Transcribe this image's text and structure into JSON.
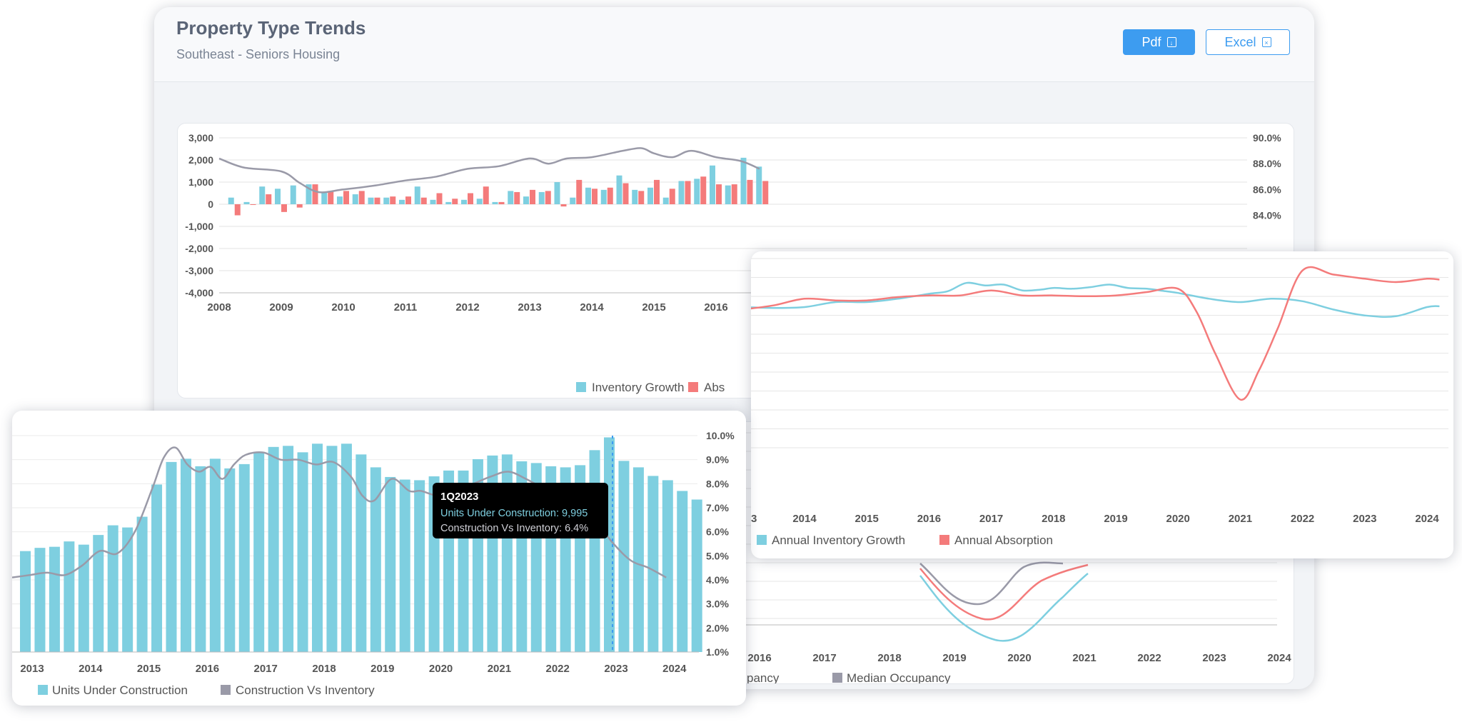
{
  "header": {
    "title": "Property Type Trends",
    "subtitle": "Southeast - Seniors Housing",
    "pdf_label": "Pdf",
    "excel_label": "Excel"
  },
  "colors": {
    "cyan": "#7ecfe0",
    "red": "#f47b7b",
    "gray": "#9a9aa8",
    "accent": "#3d9cf0"
  },
  "chart_data": [
    {
      "type": "bar",
      "y_left_ticks": [
        "3,000",
        "2,000",
        "1,000",
        "0",
        "-1,000",
        "-2,000",
        "-3,000",
        "-4,000"
      ],
      "ylim": [
        -4000,
        3000
      ],
      "y_right_ticks": [
        "90.0%",
        "88.0%",
        "86.0%",
        "84.0%"
      ],
      "y2lim": [
        78,
        90
      ],
      "x_ticks": [
        "2008",
        "2009",
        "2010",
        "2011",
        "2012",
        "2013",
        "2014",
        "2015",
        "2016"
      ],
      "legend": [
        "Inventory Growth",
        "Abs"
      ],
      "series": [
        {
          "name": "Inventory Growth",
          "quarters": [
            "2008Q2",
            "2008Q3",
            "2008Q4",
            "2009Q1",
            "2009Q2",
            "2009Q3",
            "2009Q4",
            "2010Q1",
            "2010Q2",
            "2010Q3",
            "2010Q4",
            "2011Q1",
            "2011Q2",
            "2011Q3",
            "2011Q4",
            "2012Q1",
            "2012Q2",
            "2012Q3",
            "2012Q4",
            "2013Q1",
            "2013Q2",
            "2013Q3",
            "2013Q4",
            "2014Q1",
            "2014Q2",
            "2014Q3",
            "2014Q4",
            "2015Q1",
            "2015Q2",
            "2015Q3",
            "2015Q4",
            "2016Q1",
            "2016Q2",
            "2016Q3",
            "2016Q4"
          ],
          "values": [
            300,
            100,
            800,
            700,
            850,
            900,
            550,
            350,
            450,
            300,
            300,
            200,
            800,
            200,
            100,
            200,
            250,
            100,
            600,
            350,
            550,
            1000,
            300,
            750,
            650,
            1300,
            650,
            750,
            300,
            1050,
            1150,
            1750,
            850,
            2100,
            1700
          ]
        },
        {
          "name": "Abs",
          "quarters": [
            "2008Q2",
            "2008Q3",
            "2008Q4",
            "2009Q1",
            "2009Q2",
            "2009Q3",
            "2009Q4",
            "2010Q1",
            "2010Q2",
            "2010Q3",
            "2010Q4",
            "2011Q1",
            "2011Q2",
            "2011Q3",
            "2011Q4",
            "2012Q1",
            "2012Q2",
            "2012Q3",
            "2012Q4",
            "2013Q1",
            "2013Q2",
            "2013Q3",
            "2013Q4",
            "2014Q1",
            "2014Q2",
            "2014Q3",
            "2014Q4",
            "2015Q1",
            "2015Q2",
            "2015Q3",
            "2015Q4",
            "2016Q1",
            "2016Q2",
            "2016Q3",
            "2016Q4"
          ],
          "values": [
            -500,
            0,
            450,
            -350,
            -150,
            900,
            600,
            600,
            600,
            300,
            350,
            350,
            300,
            500,
            250,
            500,
            800,
            100,
            550,
            650,
            600,
            -100,
            1100,
            700,
            750,
            950,
            600,
            1100,
            700,
            1050,
            1250,
            900,
            900,
            1100,
            1050
          ]
        },
        {
          "name": "Occupancy",
          "x": [
            2008,
            2008.4,
            2009,
            2009.3,
            2009.6,
            2010,
            2010.5,
            2011,
            2011.5,
            2012,
            2012.5,
            2013,
            2013.3,
            2013.6,
            2014,
            2014.5,
            2014.8,
            2015,
            2015.3,
            2015.6,
            2016,
            2016.4,
            2016.7
          ],
          "values": [
            88.4,
            87.7,
            87.4,
            86.5,
            85.8,
            86.0,
            86.3,
            86.7,
            87.0,
            87.6,
            87.8,
            88.4,
            88.0,
            88.4,
            88.5,
            89.0,
            89.2,
            88.8,
            88.5,
            89.0,
            88.5,
            88.2,
            87.6
          ]
        }
      ]
    },
    {
      "type": "line",
      "x_ticks": [
        "2016",
        "2017",
        "2018",
        "2019",
        "2020",
        "2021",
        "2022",
        "2023",
        "2024"
      ],
      "legend": [
        "pancy",
        "Median Occupancy"
      ]
    },
    {
      "type": "line",
      "x_ticks": [
        "3",
        "2014",
        "2015",
        "2016",
        "2017",
        "2018",
        "2019",
        "2020",
        "2021",
        "2022",
        "2023",
        "2024"
      ],
      "legend": [
        "Annual Inventory Growth",
        "Annual Absorption"
      ],
      "series": [
        {
          "name": "Annual Inventory Growth",
          "x": [
            2013,
            2013.5,
            2014,
            2014.5,
            2015,
            2015.5,
            2016,
            2016.3,
            2016.6,
            2016.9,
            2017.2,
            2017.5,
            2017.8,
            2018,
            2018.3,
            2018.6,
            2018.9,
            2019.2,
            2019.5,
            2019.8,
            2020,
            2020.5,
            2021,
            2021.5,
            2022,
            2022.5,
            2023,
            2023.5,
            2024,
            2024.2
          ],
          "values": [
            4.6,
            4.5,
            4.6,
            5.2,
            5.2,
            5.6,
            6.2,
            6.5,
            7.5,
            7.2,
            7.3,
            6.6,
            6.7,
            6.9,
            6.8,
            7.0,
            7.3,
            6.9,
            6.8,
            6.5,
            6.3,
            5.6,
            5.2,
            5.6,
            5.3,
            4.3,
            3.6,
            3.5,
            4.6,
            4.7
          ]
        },
        {
          "name": "Annual Absorption",
          "x": [
            2013,
            2013.5,
            2014,
            2014.5,
            2015,
            2015.5,
            2016,
            2016.5,
            2017,
            2017.5,
            2018,
            2018.5,
            2019,
            2019.5,
            2020,
            2020.3,
            2020.6,
            2021,
            2021.3,
            2021.6,
            2022,
            2022.5,
            2023,
            2023.5,
            2024,
            2024.2
          ],
          "values": [
            4.3,
            4.8,
            5.6,
            5.4,
            5.4,
            5.8,
            6.0,
            6.0,
            6.6,
            6.0,
            6.0,
            5.9,
            6.0,
            6.4,
            6.8,
            4.0,
            -1.0,
            -6.5,
            -3.0,
            2.0,
            9.0,
            8.5,
            8.0,
            7.6,
            8.0,
            7.9
          ]
        }
      ]
    },
    {
      "type": "bar",
      "x_ticks": [
        "2013",
        "2014",
        "2015",
        "2016",
        "2017",
        "2018",
        "2019",
        "2020",
        "2021",
        "2022",
        "2023",
        "2024"
      ],
      "y_right_ticks": [
        "10.0%",
        "9.0%",
        "8.0%",
        "7.0%",
        "6.0%",
        "5.0%",
        "4.0%",
        "3.0%",
        "2.0%",
        "1.0%"
      ],
      "ylim": [
        0,
        13200
      ],
      "y2lim": [
        1,
        10
      ],
      "legend": [
        "Units Under Construction",
        "Construction Vs Inventory"
      ],
      "tooltip": {
        "title": "1Q2023",
        "line1": "Units Under Construction: 9,995",
        "line2": "Construction Vs Inventory: 6.4%"
      },
      "series": [
        {
          "name": "Units Under Construction",
          "quarters": [
            "2013Q1",
            "2013Q2",
            "2013Q3",
            "2013Q4",
            "2014Q1",
            "2014Q2",
            "2014Q3",
            "2014Q4",
            "2015Q1",
            "2015Q2",
            "2015Q3",
            "2015Q4",
            "2016Q1",
            "2016Q2",
            "2016Q3",
            "2016Q4",
            "2017Q1",
            "2017Q2",
            "2017Q3",
            "2017Q4",
            "2018Q1",
            "2018Q2",
            "2018Q3",
            "2018Q4",
            "2019Q1",
            "2019Q2",
            "2019Q3",
            "2019Q4",
            "2020Q1",
            "2020Q2",
            "2020Q3",
            "2020Q4",
            "2021Q1",
            "2021Q2",
            "2021Q3",
            "2021Q4",
            "2022Q1",
            "2022Q2",
            "2022Q3",
            "2022Q4",
            "2023Q1",
            "2023Q2",
            "2023Q3",
            "2023Q4",
            "2024Q1",
            "2024Q2",
            "2024Q3"
          ],
          "values": [
            4700,
            4850,
            4900,
            5150,
            5000,
            5450,
            5900,
            5800,
            6300,
            7800,
            8850,
            9000,
            8650,
            9000,
            8550,
            8750,
            9280,
            9550,
            9600,
            9300,
            9700,
            9600,
            9700,
            9200,
            8600,
            8150,
            8030,
            8000,
            8180,
            8450,
            8450,
            8980,
            9150,
            9200,
            8880,
            8800,
            8650,
            8600,
            8700,
            9400,
            9995,
            8900,
            8600,
            8200,
            8000,
            7500,
            7100
          ]
        },
        {
          "name": "Construction Vs Inventory",
          "x": [
            2013,
            2013.3,
            2013.6,
            2013.9,
            2014.2,
            2014.5,
            2014.8,
            2015.1,
            2015.4,
            2015.6,
            2015.8,
            2016.0,
            2016.2,
            2016.4,
            2016.6,
            2016.8,
            2017.0,
            2017.3,
            2017.6,
            2017.9,
            2018.2,
            2018.5,
            2018.8,
            2019.0,
            2019.2,
            2019.5,
            2019.8,
            2020.0,
            2020.3,
            2020.6,
            2020.9,
            2021.2,
            2021.5,
            2021.8,
            2022.1,
            2022.4,
            2022.7,
            2023.0,
            2023.3,
            2023.6,
            2023.9,
            2024.2
          ],
          "values": [
            4.1,
            4.2,
            4.3,
            4.2,
            4.6,
            5.2,
            5.1,
            6.0,
            7.8,
            9.1,
            9.5,
            8.8,
            8.5,
            8.7,
            8.2,
            8.8,
            9.2,
            9.3,
            9.0,
            9.0,
            8.8,
            8.9,
            8.3,
            7.5,
            7.3,
            8.2,
            7.7,
            7.7,
            7.5,
            7.7,
            8.0,
            8.3,
            8.5,
            8.2,
            7.8,
            7.4,
            7.0,
            6.4,
            5.5,
            4.8,
            4.5,
            4.1
          ]
        }
      ]
    }
  ]
}
